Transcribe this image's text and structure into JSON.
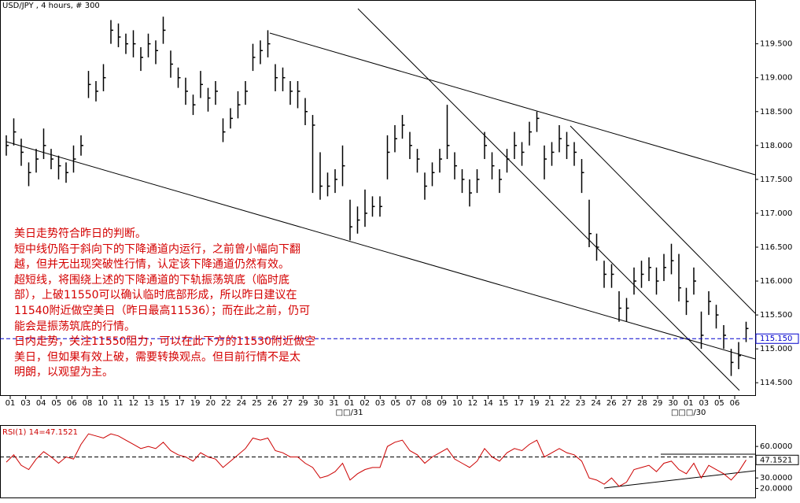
{
  "chart_data": [
    {
      "type": "ohlc",
      "title": "USD/JPY , 4 hours, # 300",
      "color": "#000000",
      "x_labels": [
        "01",
        "03",
        "04",
        "05",
        "06",
        "08",
        "10",
        "11",
        "12",
        "13",
        "15",
        "17",
        "19",
        "20",
        "22",
        "24",
        "25",
        "26",
        "27",
        "29",
        "30",
        "31",
        "01",
        "02",
        "03",
        "05",
        "07",
        "08",
        "09",
        "10",
        "12",
        "14",
        "15",
        "17",
        "19",
        "21",
        "22",
        "23",
        "24",
        "26",
        "27",
        "28",
        "29",
        "30",
        "01",
        "03",
        "05",
        "06"
      ],
      "month_labels": [
        "□□/31",
        "□□□/30"
      ],
      "high": [
        118.15,
        118.4,
        118.1,
        117.75,
        117.95,
        118.25,
        117.95,
        117.85,
        117.75,
        118.0,
        118.15,
        119.1,
        118.95,
        119.2,
        119.85,
        119.8,
        119.65,
        119.7,
        119.45,
        119.65,
        119.55,
        119.9,
        119.4,
        119.15,
        119.0,
        118.75,
        119.1,
        118.85,
        118.95,
        118.4,
        118.55,
        118.8,
        118.95,
        119.5,
        119.55,
        119.7,
        119.2,
        119.15,
        118.95,
        118.95,
        118.7,
        118.45,
        117.9,
        117.6,
        117.65,
        118.0,
        117.2,
        117.1,
        117.35,
        117.25,
        117.25,
        118.15,
        118.3,
        118.45,
        118.2,
        117.95,
        117.6,
        117.75,
        117.95,
        118.6,
        117.9,
        117.65,
        117.5,
        117.65,
        118.2,
        117.9,
        117.65,
        117.95,
        118.2,
        118.05,
        118.35,
        118.5,
        118.0,
        118.05,
        118.3,
        118.2,
        118.05,
        117.8,
        117.2,
        116.7,
        116.3,
        116.25,
        115.85,
        115.75,
        116.2,
        116.3,
        116.35,
        116.2,
        116.4,
        116.55,
        116.4,
        115.9,
        116.2,
        115.55,
        115.85,
        115.65,
        115.35,
        115.0,
        115.1,
        115.4
      ],
      "low": [
        117.85,
        118.0,
        117.7,
        117.4,
        117.6,
        117.8,
        117.65,
        117.5,
        117.45,
        117.6,
        117.85,
        118.7,
        118.65,
        118.8,
        119.5,
        119.45,
        119.35,
        119.3,
        119.1,
        119.3,
        119.2,
        119.5,
        119.0,
        118.85,
        118.6,
        118.45,
        118.7,
        118.5,
        118.6,
        118.05,
        118.25,
        118.4,
        118.6,
        119.1,
        119.2,
        119.3,
        118.8,
        118.8,
        118.6,
        118.55,
        118.3,
        117.3,
        117.2,
        117.25,
        117.3,
        117.4,
        116.6,
        116.7,
        116.8,
        116.95,
        116.95,
        117.5,
        117.9,
        118.1,
        117.8,
        117.6,
        117.2,
        117.4,
        117.6,
        117.8,
        117.5,
        117.3,
        117.1,
        117.3,
        117.8,
        117.5,
        117.3,
        117.6,
        117.8,
        117.7,
        118.0,
        118.2,
        117.5,
        117.7,
        117.9,
        117.8,
        117.7,
        117.3,
        116.5,
        116.3,
        115.9,
        115.9,
        115.4,
        115.4,
        115.8,
        115.9,
        116.0,
        115.8,
        116.0,
        116.1,
        115.7,
        115.5,
        115.8,
        115.0,
        115.5,
        115.3,
        115.0,
        114.6,
        114.7,
        115.1
      ],
      "close": [
        118.0,
        118.2,
        117.9,
        117.6,
        117.8,
        118.0,
        117.8,
        117.7,
        117.6,
        117.8,
        118.0,
        118.9,
        118.8,
        119.0,
        119.7,
        119.6,
        119.5,
        119.5,
        119.3,
        119.5,
        119.4,
        119.7,
        119.2,
        119.0,
        118.8,
        118.6,
        118.9,
        118.7,
        118.8,
        118.2,
        118.4,
        118.6,
        118.8,
        119.3,
        119.4,
        119.5,
        119.0,
        119.0,
        118.8,
        118.8,
        118.5,
        118.3,
        117.4,
        117.4,
        117.5,
        117.7,
        116.8,
        116.9,
        117.0,
        117.1,
        117.1,
        117.9,
        118.1,
        118.3,
        118.0,
        117.8,
        117.4,
        117.6,
        117.8,
        118.0,
        117.7,
        117.5,
        117.3,
        117.5,
        118.0,
        117.7,
        117.5,
        117.8,
        118.0,
        117.9,
        118.2,
        118.4,
        117.8,
        117.9,
        118.1,
        118.0,
        117.9,
        117.6,
        116.7,
        116.5,
        116.1,
        116.1,
        115.6,
        115.6,
        116.0,
        116.1,
        116.2,
        116.0,
        116.2,
        116.3,
        115.9,
        115.7,
        116.0,
        115.2,
        115.7,
        115.5,
        115.2,
        114.8,
        114.9,
        115.3
      ],
      "ylim": [
        114.34,
        120.03
      ],
      "yticks": [
        {
          "value": 114.5,
          "label": "114.500"
        },
        {
          "value": 115.0,
          "label": "115.000"
        },
        {
          "value": 115.5,
          "label": "115.500"
        },
        {
          "value": 116.0,
          "label": "116.000"
        },
        {
          "value": 116.5,
          "label": "116.500"
        },
        {
          "value": 117.0,
          "label": "117.000"
        },
        {
          "value": 117.5,
          "label": "117.500"
        },
        {
          "value": 118.0,
          "label": "118.000"
        },
        {
          "value": 118.5,
          "label": "118.500"
        },
        {
          "value": 119.0,
          "label": "119.000"
        },
        {
          "value": 119.5,
          "label": "119.500"
        }
      ],
      "current_price": {
        "value": 115.15,
        "label": "115.150"
      },
      "current_color": "#0000cc"
    },
    {
      "type": "line",
      "title": "RSI(1) 14=47.1521",
      "color": "#cc0000",
      "values": [
        45,
        52,
        42,
        38,
        48,
        55,
        50,
        44,
        50,
        48,
        62,
        72,
        70,
        68,
        72,
        70,
        66,
        62,
        58,
        60,
        58,
        64,
        56,
        52,
        50,
        46,
        54,
        50,
        48,
        40,
        46,
        52,
        58,
        68,
        66,
        68,
        56,
        54,
        50,
        50,
        44,
        40,
        30,
        32,
        36,
        44,
        28,
        34,
        38,
        40,
        40,
        60,
        64,
        66,
        56,
        52,
        44,
        50,
        54,
        58,
        48,
        44,
        40,
        46,
        58,
        50,
        46,
        54,
        58,
        56,
        62,
        66,
        50,
        54,
        58,
        54,
        52,
        46,
        30,
        28,
        24,
        30,
        22,
        26,
        38,
        40,
        42,
        36,
        44,
        46,
        38,
        34,
        44,
        30,
        42,
        38,
        34,
        28,
        36,
        47.1521
      ],
      "ylim": [
        11.4,
        79.6
      ],
      "yticks": [
        {
          "value": 20,
          "label": "20.0000"
        },
        {
          "value": 30,
          "label": "30.0000"
        },
        {
          "value": 60,
          "label": "60.0000"
        }
      ],
      "reference_line": 50
    }
  ],
  "annotation": {
    "lines": [
      "美日走势符合昨日的判断。",
      "短中线仍陷于斜向下的下降通道内运行，之前曾小幅向下翻",
      "越，但并无出现突破性行情，认定该下降通道仍然有效。",
      "超短线，将围绕上述的下降通道的下轨振荡筑底（临时底",
      "部），上破11550可以确认临时底部形成，所以昨日建议在",
      "11540附近做空美日（昨日最高11536）；而在此之前，仍可",
      "能会是振荡筑底的行情。",
      "日内走势，关注11550阻力，可以在此下方的11530附近做空",
      "美日，但如果有效上破，需要转换观点。但目前行情不是太",
      "明朗，以观望为主。"
    ]
  }
}
